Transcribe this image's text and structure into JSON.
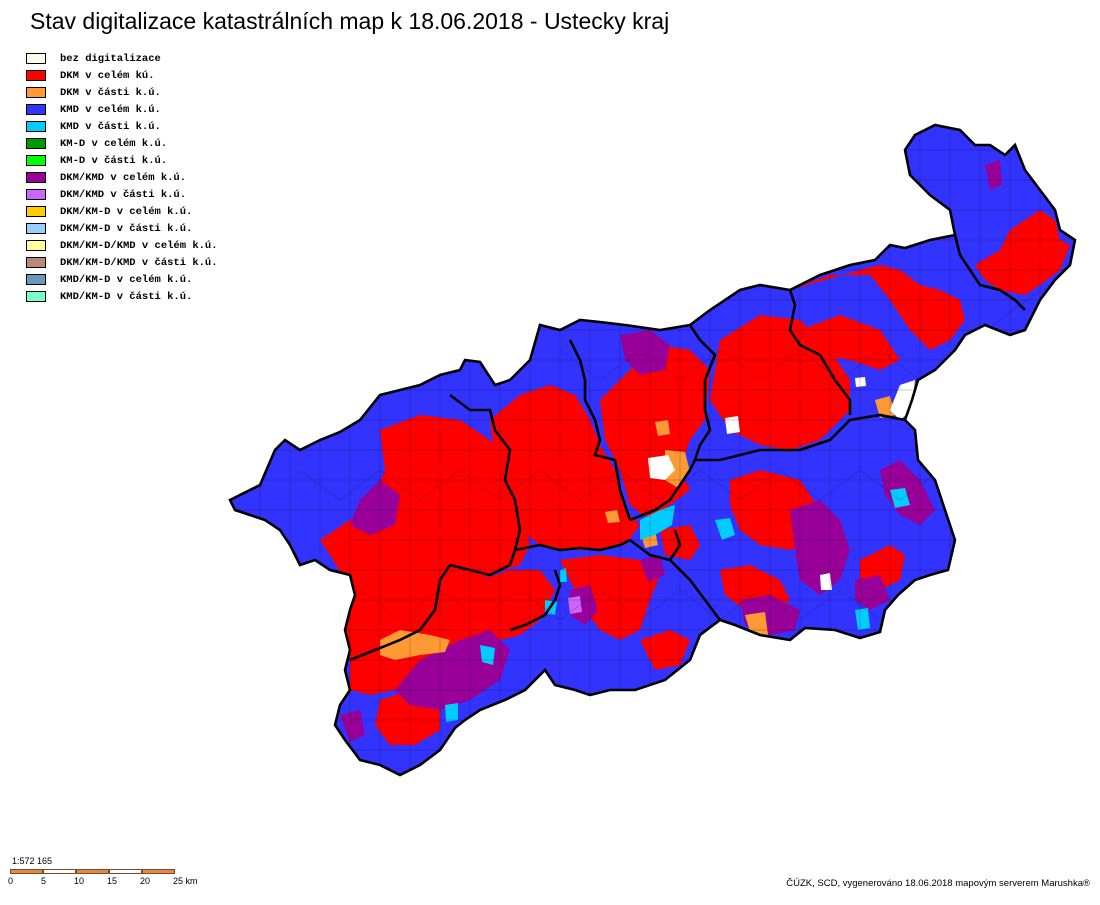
{
  "title": "Stav digitalizace katastrálních map k 18.06.2018 - Ustecky kraj",
  "legend": [
    {
      "label": "bez digitalizace",
      "color": "#fdfcea"
    },
    {
      "label": "DKM v celém kú.",
      "color": "#ff0000"
    },
    {
      "label": "DKM v části k.ú.",
      "color": "#ff9933"
    },
    {
      "label": "KMD v celém k.ú.",
      "color": "#3333ff"
    },
    {
      "label": "KMD v části k.ú.",
      "color": "#00ccff"
    },
    {
      "label": "KM-D v celém k.ú.",
      "color": "#009900"
    },
    {
      "label": "KM-D v části k.ú.",
      "color": "#00ff00"
    },
    {
      "label": "DKM/KMD v celém k.ú.",
      "color": "#990099"
    },
    {
      "label": "DKM/KMD v části k.ú.",
      "color": "#cc66ff"
    },
    {
      "label": "DKM/KM-D v celém k.ú.",
      "color": "#ffcc00"
    },
    {
      "label": "DKM/KM-D v části k.ú.",
      "color": "#99ccff"
    },
    {
      "label": "DKM/KM-D/KMD v celém k.ú.",
      "color": "#ffff99"
    },
    {
      "label": "DKM/KM-D/KMD v části k.ú.",
      "color": "#bb8877"
    },
    {
      "label": "KMD/KM-D v celém k.ú.",
      "color": "#6699bb"
    },
    {
      "label": "KMD/KM-D v části k.ú.",
      "color": "#77ffcc"
    }
  ],
  "scale": {
    "ratio": "1:572 165",
    "ticks": [
      "0",
      "5",
      "10",
      "15",
      "20",
      "25 km"
    ],
    "segment_colors": [
      "#e08a4a",
      "#ffffff",
      "#e08a4a",
      "#ffffff",
      "#e08a4a"
    ]
  },
  "credit": "ČÚZK, SCD, vygenerováno 18.06.2018 mapovým serverem Marushka®"
}
